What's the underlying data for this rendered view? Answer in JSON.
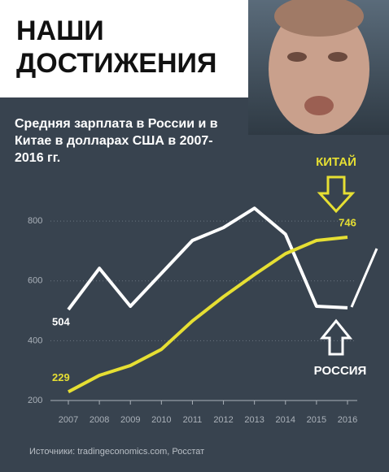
{
  "chart_data": {
    "type": "line",
    "title": "НАШИ ДОСТИЖЕНИЯ",
    "subtitle": "Средняя зарплата в России и в Китае в долларах США в 2007-2016 гг.",
    "source": "Источники: tradingeconomics.com, Росстат",
    "categories": [
      "2007",
      "2008",
      "2009",
      "2010",
      "2011",
      "2012",
      "2013",
      "2014",
      "2015",
      "2016"
    ],
    "series": [
      {
        "name": "РОССИЯ",
        "color": "#ffffff",
        "values": [
          504,
          642,
          515,
          625,
          735,
          778,
          843,
          756,
          515,
          510
        ]
      },
      {
        "name": "КИТАЙ",
        "color": "#e6df33",
        "values": [
          229,
          284,
          317,
          371,
          466,
          547,
          621,
          691,
          735,
          746
        ]
      }
    ],
    "ylim": [
      200,
      860
    ],
    "yticks": [
      200,
      400,
      600,
      800
    ],
    "grid": true
  }
}
